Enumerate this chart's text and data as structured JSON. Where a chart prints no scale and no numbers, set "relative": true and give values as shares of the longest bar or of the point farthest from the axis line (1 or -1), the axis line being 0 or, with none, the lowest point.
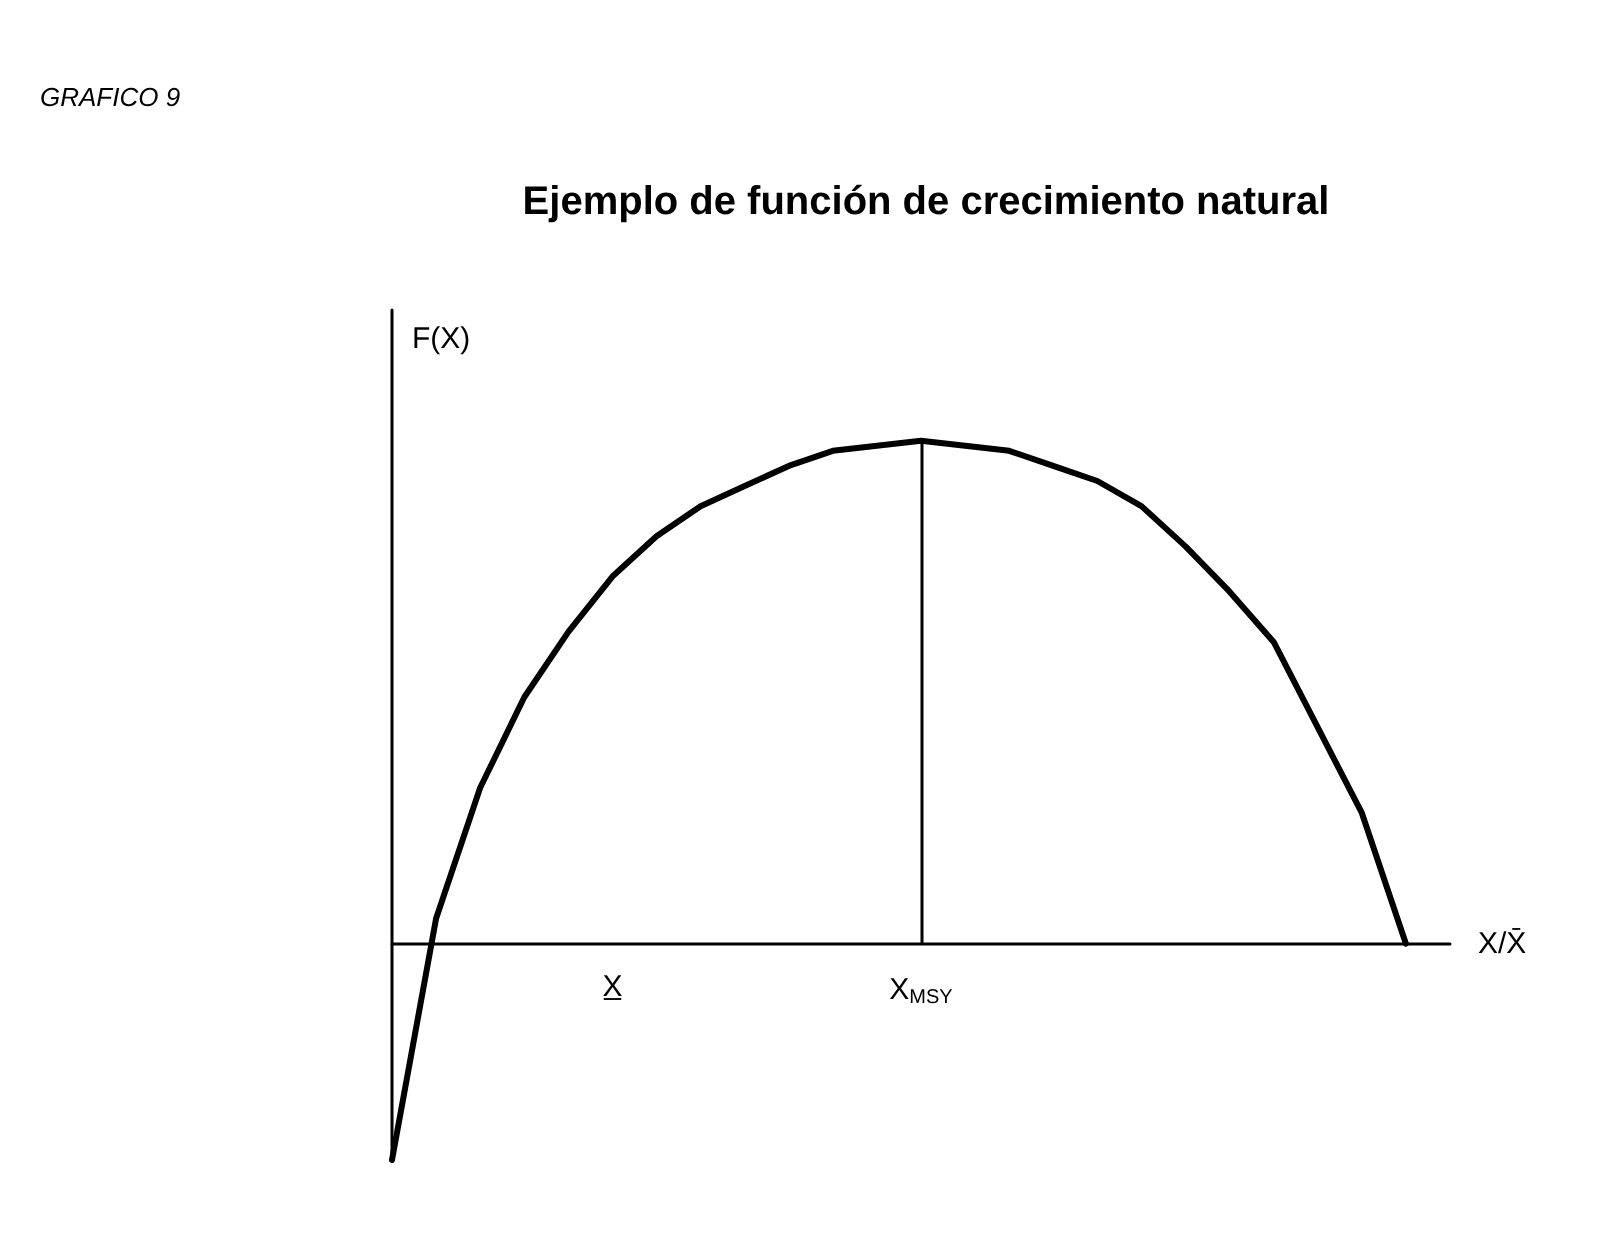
{
  "chart_data": {
    "type": "line",
    "title": "Ejemplo de función de crecimiento natural",
    "annotations": [
      "GRAFICO 9"
    ],
    "xlabel": "X/X̄",
    "ylabel": "F(X)",
    "relative": true,
    "marker": "none",
    "line_style": "solid",
    "grid": false,
    "categories": [
      null,
      null,
      null,
      null,
      null,
      "X̲",
      null,
      null,
      null,
      null,
      null,
      null,
      "X$_{MSY}$",
      null,
      null,
      null,
      null,
      null,
      null,
      null,
      null,
      null,
      null,
      null,
      null
    ],
    "series": [
      {
        "color": "#000000",
        "values": [
          -0.43,
          0.05,
          0.31,
          0.49,
          0.62,
          0.73,
          0.81,
          0.87,
          0.91,
          0.95,
          0.98,
          0.99,
          1,
          0.99,
          0.98,
          0.95,
          0.92,
          0.87,
          0.79,
          0.7,
          0.6,
          0.43,
          0.26,
          0,
          null
        ]
      }
    ],
    "ref_lines": [
      {
        "axis": "x",
        "value": "X$_{MSY}$",
        "color": "#000000",
        "line_style": "solid"
      }
    ]
  }
}
